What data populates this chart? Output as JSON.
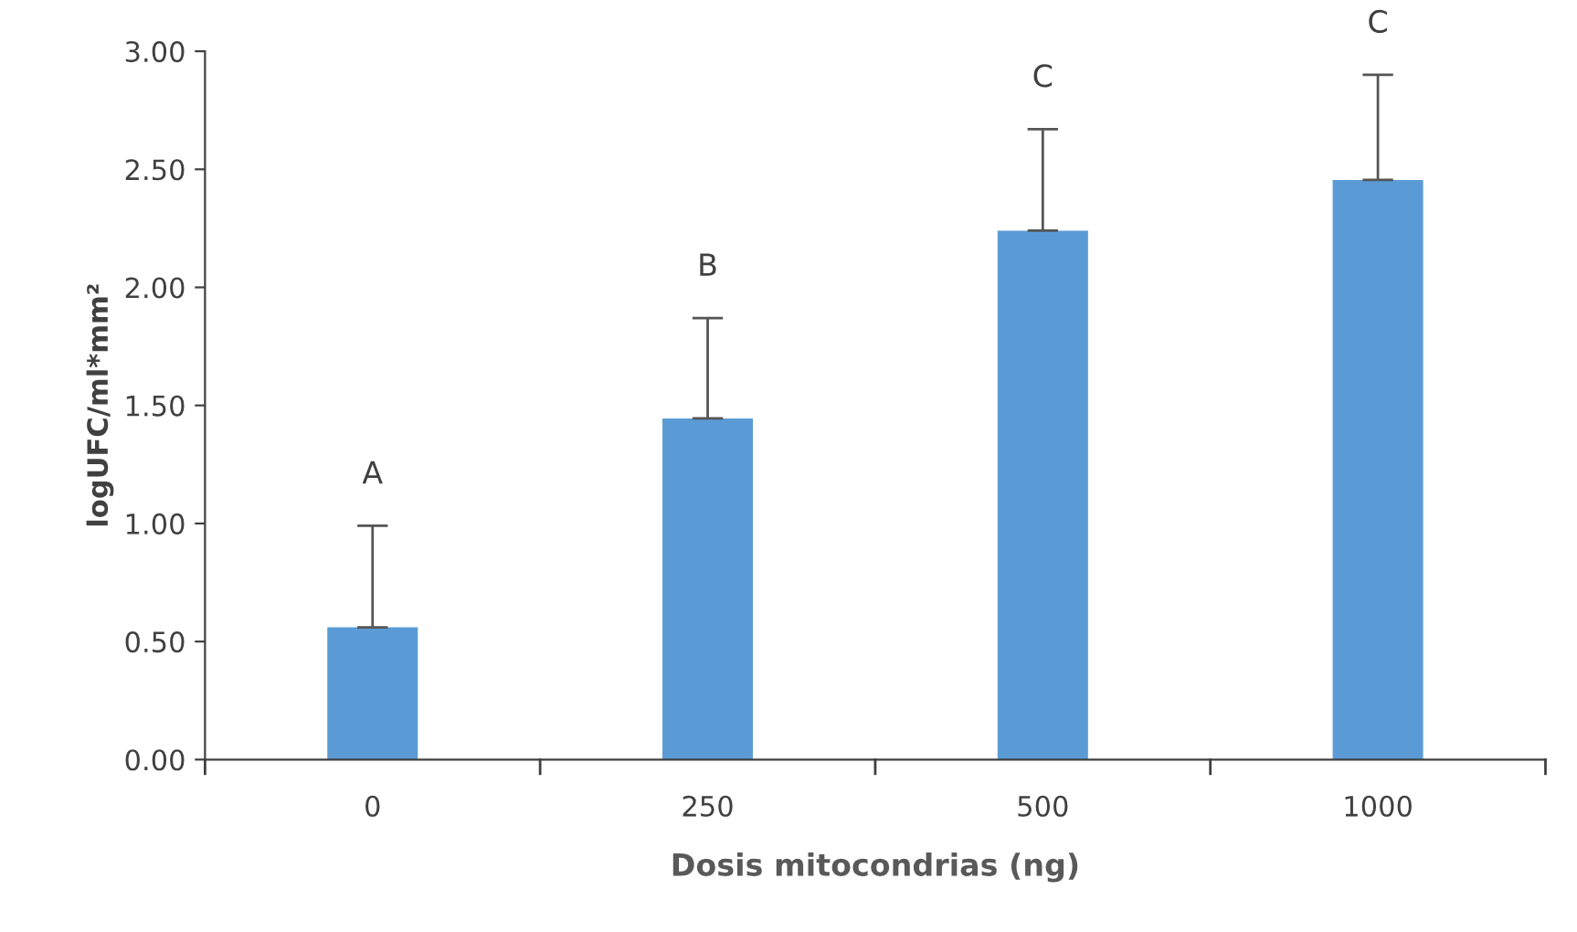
{
  "chart_data": {
    "type": "bar",
    "xlabel": "Dosis mitocondrias (ng)",
    "ylabel": "logUFC/ml*mm²",
    "categories": [
      "0",
      "250",
      "500",
      "1000"
    ],
    "values": [
      0.56,
      1.445,
      2.24,
      2.455
    ],
    "errors": [
      [
        0.56,
        0.99
      ],
      [
        1.445,
        1.87
      ],
      [
        2.24,
        2.67
      ],
      [
        2.455,
        2.9
      ]
    ],
    "color": "#5b9bd5",
    "ylim": [
      0,
      3
    ],
    "yticks": [
      {
        "value": 0,
        "label": "0.00"
      },
      {
        "value": 0.5,
        "label": "0.50"
      },
      {
        "value": 1,
        "label": "1.00"
      },
      {
        "value": 1.5,
        "label": "1.50"
      },
      {
        "value": 2,
        "label": "2.00"
      },
      {
        "value": 2.5,
        "label": "2.50"
      },
      {
        "value": 3,
        "label": "3.00"
      }
    ],
    "grid": false,
    "legend": false,
    "annotations": [
      "A",
      "B",
      "C",
      "C"
    ]
  }
}
